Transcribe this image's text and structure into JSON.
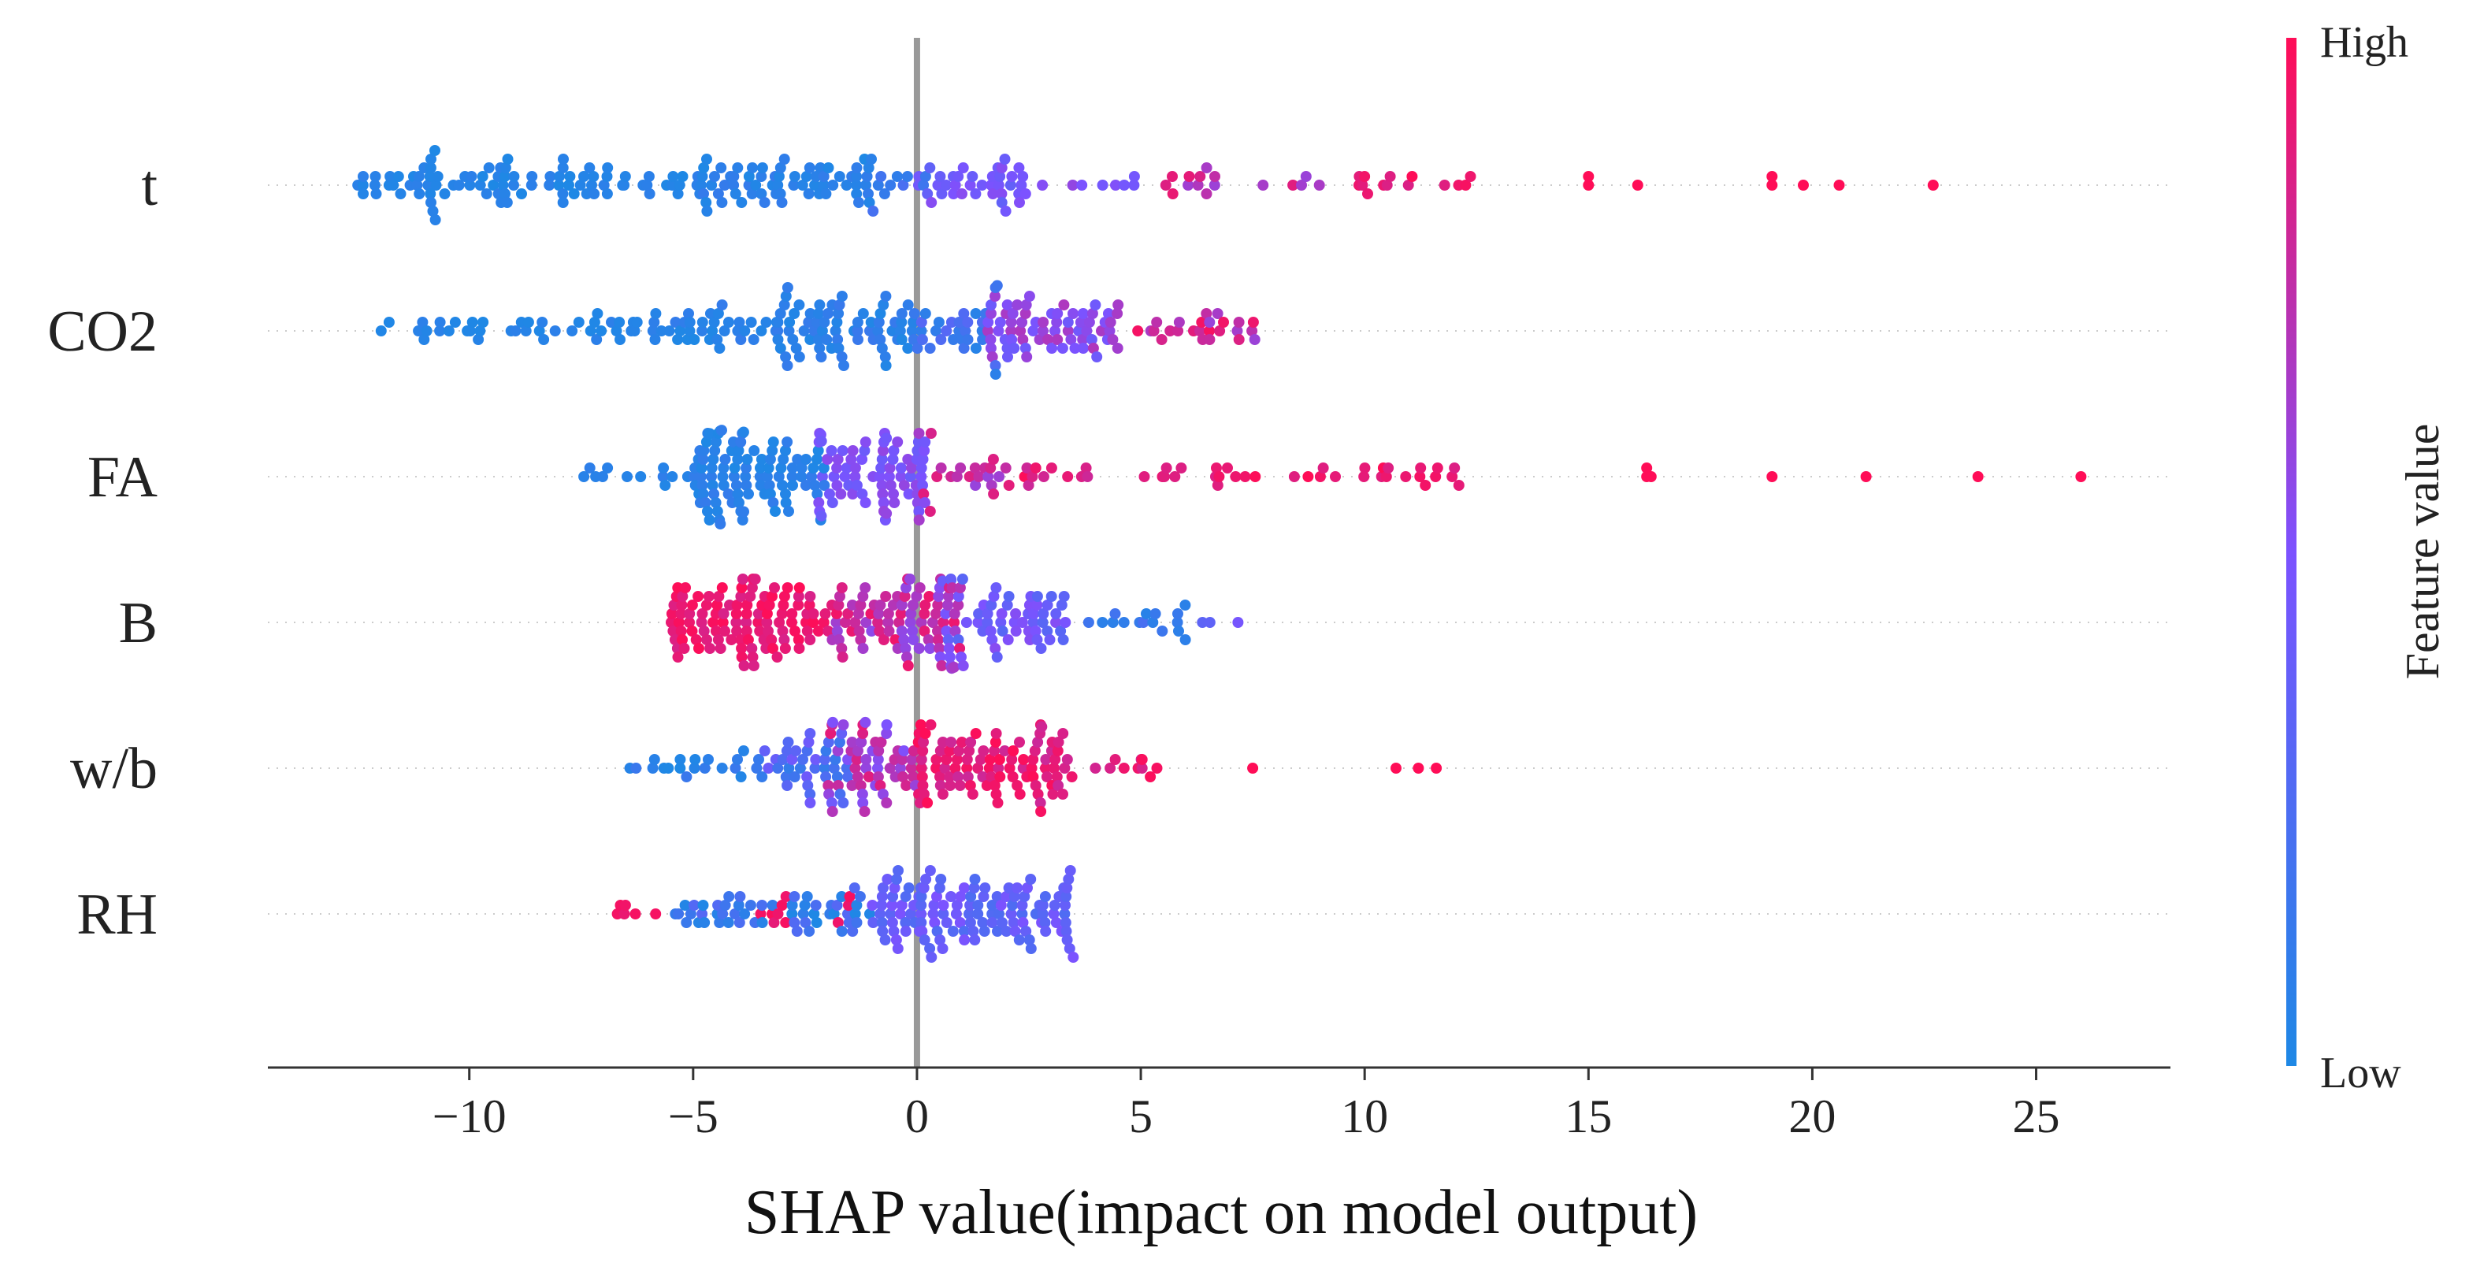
{
  "chart_data": {
    "type": "scatter",
    "subtype": "shap-beeswarm",
    "xlabel": "SHAP value(impact on model output)",
    "xlim": [
      -14.5,
      28
    ],
    "xticks": [
      -10,
      -5,
      0,
      5,
      10,
      15,
      20,
      25
    ],
    "xtick_labels": [
      "−10",
      "−5",
      "0",
      "5",
      "10",
      "15",
      "20",
      "25"
    ],
    "zero_line": true,
    "grid": false,
    "colorbar": {
      "title": "Feature value",
      "high_label": "High",
      "low_label": "Low",
      "low_color": "#1E88E5",
      "high_color": "#FF0D57",
      "placement": "right"
    },
    "features": [
      {
        "name": "t",
        "groups": [
          {
            "x_min": -12.5,
            "x_max": -5.0,
            "n": 90,
            "c_min": 0.0,
            "c_max": 0.08
          },
          {
            "x_min": -5.0,
            "x_max": -1.0,
            "n": 70,
            "c_min": 0.0,
            "c_max": 0.12
          },
          {
            "x_min": -1.0,
            "x_max": 0.5,
            "n": 10,
            "c_min": 0.05,
            "c_max": 0.25
          },
          {
            "x_min": 0.0,
            "x_max": 2.5,
            "n": 38,
            "c_min": 0.35,
            "c_max": 0.55
          },
          {
            "x_min": 2.5,
            "x_max": 5.0,
            "n": 8,
            "c_min": 0.45,
            "c_max": 0.6
          },
          {
            "x_min": 5.5,
            "x_max": 9.0,
            "n": 16,
            "c_min": 0.6,
            "c_max": 0.95
          },
          {
            "x_min": 9.5,
            "x_max": 12.4,
            "n": 14,
            "c_min": 0.85,
            "c_max": 1.0
          }
        ],
        "points": [
          {
            "x": 15.0,
            "c": 1.0
          },
          {
            "x": 15.0,
            "c": 1.0
          },
          {
            "x": 16.1,
            "c": 1.0
          },
          {
            "x": 19.1,
            "c": 1.0
          },
          {
            "x": 19.1,
            "c": 1.0
          },
          {
            "x": 19.8,
            "c": 1.0
          },
          {
            "x": 20.6,
            "c": 1.0
          },
          {
            "x": 22.7,
            "c": 1.0
          }
        ]
      },
      {
        "name": "CO2",
        "groups": [
          {
            "x_min": -12.0,
            "x_max": -6.0,
            "n": 40,
            "c_min": 0.0,
            "c_max": 0.08
          },
          {
            "x_min": -6.0,
            "x_max": -2.5,
            "n": 55,
            "c_min": 0.0,
            "c_max": 0.12
          },
          {
            "x_min": -2.5,
            "x_max": 0.0,
            "n": 55,
            "c_min": 0.0,
            "c_max": 0.15
          },
          {
            "x_min": 0.0,
            "x_max": 1.8,
            "n": 30,
            "c_min": 0.05,
            "c_max": 0.3
          },
          {
            "x_min": 1.5,
            "x_max": 4.5,
            "n": 70,
            "c_min": 0.4,
            "c_max": 0.7
          },
          {
            "x_min": 4.5,
            "x_max": 7.6,
            "n": 25,
            "c_min": 0.6,
            "c_max": 1.0
          }
        ],
        "points": []
      },
      {
        "name": "FA",
        "groups": [
          {
            "x_min": -7.6,
            "x_max": -5.0,
            "n": 12,
            "c_min": 0.0,
            "c_max": 0.1
          },
          {
            "x_min": -5.0,
            "x_max": -2.0,
            "n": 100,
            "c_min": 0.0,
            "c_max": 0.12
          },
          {
            "x_min": -2.2,
            "x_max": 0.2,
            "n": 75,
            "c_min": 0.4,
            "c_max": 0.6
          },
          {
            "x_min": 0.0,
            "x_max": 2.0,
            "n": 22,
            "c_min": 0.6,
            "c_max": 0.9
          },
          {
            "x_min": 2.0,
            "x_max": 4.0,
            "n": 12,
            "c_min": 0.8,
            "c_max": 1.0
          },
          {
            "x_min": 5.0,
            "x_max": 12.4,
            "n": 34,
            "c_min": 0.85,
            "c_max": 1.0
          }
        ],
        "points": [
          {
            "x": 16.3,
            "c": 1.0
          },
          {
            "x": 16.3,
            "c": 1.0
          },
          {
            "x": 16.4,
            "c": 1.0
          },
          {
            "x": 19.1,
            "c": 1.0
          },
          {
            "x": 21.2,
            "c": 1.0
          },
          {
            "x": 23.7,
            "c": 1.0
          },
          {
            "x": 26.0,
            "c": 1.0
          }
        ]
      },
      {
        "name": "B",
        "groups": [
          {
            "x_min": -5.5,
            "x_max": -2.0,
            "n": 110,
            "c_min": 0.85,
            "c_max": 1.0
          },
          {
            "x_min": -2.0,
            "x_max": 1.0,
            "n": 90,
            "c_min": 0.55,
            "c_max": 0.95
          },
          {
            "x_min": 0.5,
            "x_max": 3.5,
            "n": 65,
            "c_min": 0.3,
            "c_max": 0.55
          },
          {
            "x_min": 3.5,
            "x_max": 6.0,
            "n": 16,
            "c_min": 0.05,
            "c_max": 0.25
          },
          {
            "x_min": 6.0,
            "x_max": 7.5,
            "n": 3,
            "c_min": 0.3,
            "c_max": 0.5
          }
        ],
        "points": []
      },
      {
        "name": "w/b",
        "groups": [
          {
            "x_min": -6.5,
            "x_max": -3.5,
            "n": 20,
            "c_min": 0.0,
            "c_max": 0.15
          },
          {
            "x_min": -3.5,
            "x_max": -1.5,
            "n": 40,
            "c_min": 0.1,
            "c_max": 0.45
          },
          {
            "x_min": -2.0,
            "x_max": 0.0,
            "n": 55,
            "c_min": 0.5,
            "c_max": 0.9
          },
          {
            "x_min": 0.0,
            "x_max": 3.5,
            "n": 100,
            "c_min": 0.8,
            "c_max": 1.0
          },
          {
            "x_min": 3.5,
            "x_max": 6.0,
            "n": 10,
            "c_min": 0.8,
            "c_max": 1.0
          }
        ],
        "points": [
          {
            "x": 7.5,
            "c": 1.0
          },
          {
            "x": 10.7,
            "c": 1.0
          },
          {
            "x": 11.2,
            "c": 1.0
          },
          {
            "x": 11.6,
            "c": 1.0
          }
        ]
      },
      {
        "name": "RH",
        "groups": [
          {
            "x_min": -6.8,
            "x_max": -5.5,
            "n": 6,
            "c_min": 0.9,
            "c_max": 1.0
          },
          {
            "x_min": -5.5,
            "x_max": -1.0,
            "n": 55,
            "c_min": 0.0,
            "c_max": 0.3
          },
          {
            "x_min": -3.5,
            "x_max": -1.5,
            "n": 10,
            "c_min": 0.9,
            "c_max": 1.0
          },
          {
            "x_min": -1.0,
            "x_max": 3.5,
            "n": 130,
            "c_min": 0.25,
            "c_max": 0.5
          }
        ],
        "points": []
      }
    ]
  }
}
